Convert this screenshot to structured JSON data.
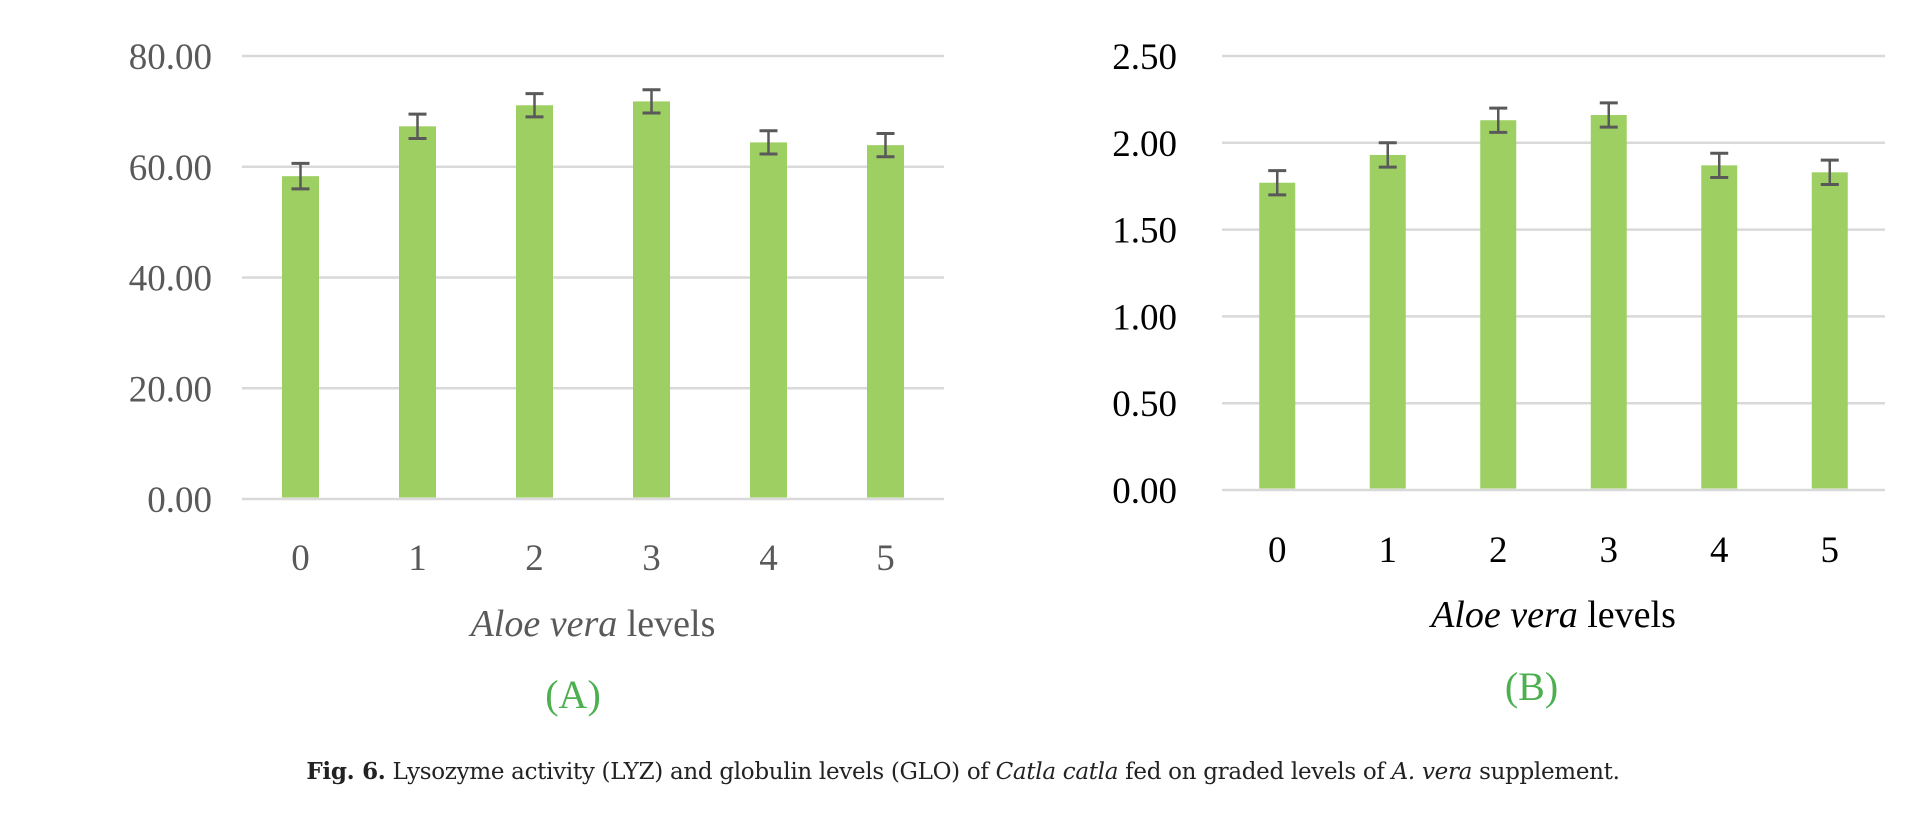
{
  "chart_data": [
    {
      "type": "bar",
      "panel_label": "(A)",
      "categories": [
        "0",
        "1",
        "2",
        "3",
        "4",
        "5"
      ],
      "values": [
        58.3,
        67.3,
        71.1,
        71.8,
        64.4,
        63.9
      ],
      "errors": [
        2.3,
        2.2,
        2.1,
        2.1,
        2.1,
        2.1
      ],
      "xlabel_italic": "Aloe vera",
      "xlabel_rest": " levels",
      "ylabel": "",
      "ylim": [
        0,
        80
      ],
      "yticks": [
        "0.00",
        "20.00",
        "40.00",
        "60.00",
        "80.00"
      ],
      "grid": true
    },
    {
      "type": "bar",
      "panel_label": "(B)",
      "categories": [
        "0",
        "1",
        "2",
        "3",
        "4",
        "5"
      ],
      "values": [
        1.77,
        1.93,
        2.13,
        2.16,
        1.87,
        1.83
      ],
      "errors": [
        0.07,
        0.07,
        0.07,
        0.07,
        0.07,
        0.07
      ],
      "xlabel_italic": "Aloe vera",
      "xlabel_rest": " levels",
      "ylabel": "",
      "ylim": [
        0,
        2.5
      ],
      "yticks": [
        "0.00",
        "0.50",
        "1.00",
        "1.50",
        "2.00",
        "2.50"
      ],
      "grid": true
    }
  ],
  "colors": {
    "bar": "#9ecf62",
    "error": "#595959",
    "grid": "#d9d9d9",
    "panel_label": "#4caf50",
    "tick_a": "#595959",
    "tick_b": "#000000"
  },
  "caption": {
    "fig": "Fig. 6.",
    "t1": " Lysozyme activity (LYZ) and globulin levels (GLO) of ",
    "i1": "Catla catla",
    "t2": " fed on graded levels of ",
    "i2": "A. vera",
    "t3": " supplement."
  }
}
